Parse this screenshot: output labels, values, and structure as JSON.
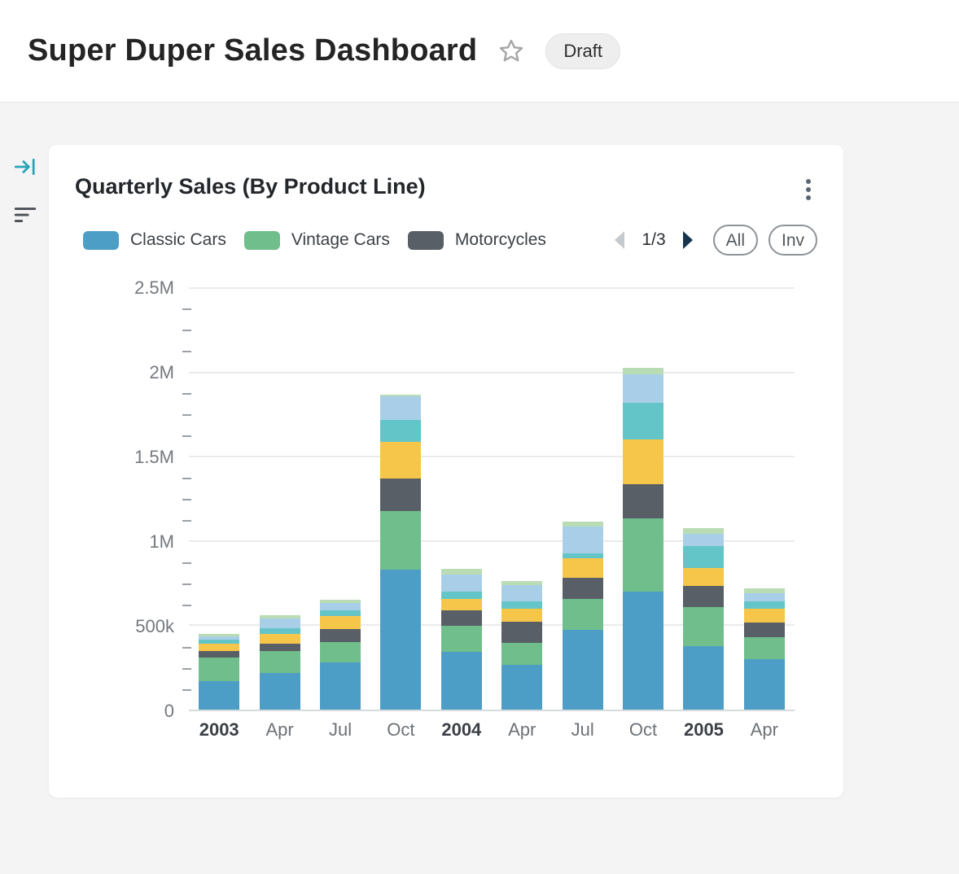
{
  "header": {
    "title": "Super Duper Sales Dashboard",
    "badge": "Draft"
  },
  "controls": {
    "page_indicator": "1/3",
    "all_label": "All",
    "inv_label": "Inv"
  },
  "colors": {
    "accent_teal": "#2AA3B8",
    "chevron_active": "#16344e",
    "chevron_disabled": "#c7cacd"
  },
  "chart_data": {
    "type": "bar",
    "stacked": true,
    "title": "Quarterly Sales (By Product Line)",
    "legend_position": "top",
    "grid": true,
    "ylim": [
      0,
      2500000
    ],
    "minor_tick_interval": 125000,
    "y_ticks": [
      {
        "label": "0",
        "value": 0
      },
      {
        "label": "500k",
        "value": 500000
      },
      {
        "label": "1M",
        "value": 1000000
      },
      {
        "label": "1.5M",
        "value": 1500000
      },
      {
        "label": "2M",
        "value": 2000000
      },
      {
        "label": "2.5M",
        "value": 2500000
      }
    ],
    "categories": [
      {
        "label": "2003",
        "bold": true
      },
      {
        "label": "Apr",
        "bold": false
      },
      {
        "label": "Jul",
        "bold": false
      },
      {
        "label": "Oct",
        "bold": false
      },
      {
        "label": "2004",
        "bold": true
      },
      {
        "label": "Apr",
        "bold": false
      },
      {
        "label": "Jul",
        "bold": false
      },
      {
        "label": "Oct",
        "bold": false
      },
      {
        "label": "2005",
        "bold": true
      },
      {
        "label": "Apr",
        "bold": false
      }
    ],
    "series": [
      {
        "name": "Classic Cars",
        "color": "#4D9EC6",
        "in_legend": true,
        "values": [
          170000,
          215000,
          280000,
          825000,
          340000,
          265000,
          470000,
          695000,
          375000,
          300000
        ]
      },
      {
        "name": "Vintage Cars",
        "color": "#6FBE8C",
        "in_legend": true,
        "values": [
          140000,
          130000,
          120000,
          350000,
          155000,
          130000,
          185000,
          435000,
          230000,
          130000
        ]
      },
      {
        "name": "Motorcycles",
        "color": "#595F66",
        "in_legend": true,
        "values": [
          35000,
          45000,
          75000,
          190000,
          90000,
          125000,
          125000,
          200000,
          125000,
          85000
        ]
      },
      {
        "name": "unlabeled-yellow",
        "color": "#F6C64B",
        "in_legend": false,
        "values": [
          45000,
          55000,
          80000,
          215000,
          70000,
          75000,
          115000,
          265000,
          105000,
          80000
        ]
      },
      {
        "name": "unlabeled-teal",
        "color": "#63C5C8",
        "in_legend": false,
        "values": [
          25000,
          35000,
          30000,
          130000,
          40000,
          45000,
          30000,
          220000,
          130000,
          45000
        ]
      },
      {
        "name": "unlabeled-light-blue",
        "color": "#A9CFE8",
        "in_legend": false,
        "values": [
          20000,
          60000,
          45000,
          140000,
          105000,
          95000,
          155000,
          165000,
          75000,
          50000
        ]
      },
      {
        "name": "unlabeled-light-green",
        "color": "#B9DCB4",
        "in_legend": false,
        "values": [
          10000,
          20000,
          20000,
          10000,
          30000,
          25000,
          30000,
          40000,
          30000,
          25000
        ]
      }
    ]
  }
}
